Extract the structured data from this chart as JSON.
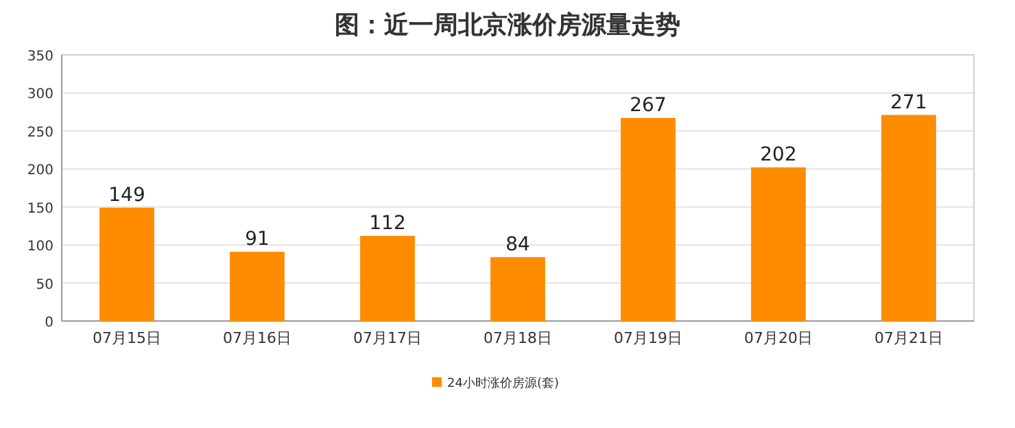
{
  "chart_data": {
    "type": "bar",
    "title": "图：近一周北京涨价房源量走势",
    "categories": [
      "07月15日",
      "07月16日",
      "07月17日",
      "07月18日",
      "07月19日",
      "07月20日",
      "07月21日"
    ],
    "series": [
      {
        "name": "24小时涨价房源(套)",
        "color": "#ff8c00",
        "values": [
          149,
          91,
          112,
          84,
          267,
          202,
          271
        ]
      }
    ],
    "ylim": [
      0,
      350
    ],
    "yticks": [
      0,
      50,
      100,
      150,
      200,
      250,
      300,
      350
    ],
    "grid": "y",
    "legend": "bottom",
    "data_labels": true
  }
}
